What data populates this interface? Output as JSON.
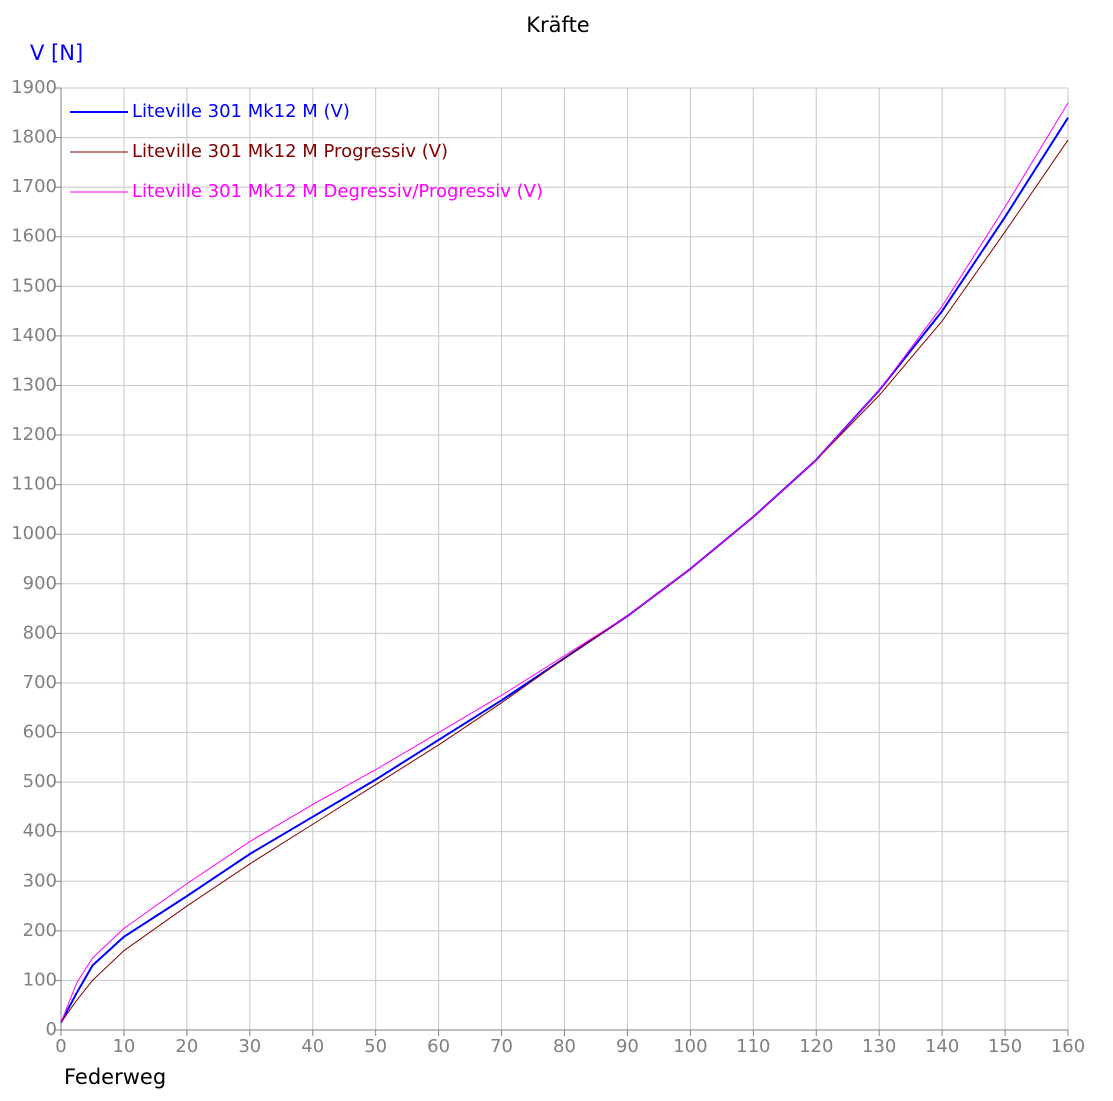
{
  "chart_data": {
    "type": "line",
    "title": "Kräfte",
    "y_label": "V [N]",
    "x_label": "Federweg",
    "x": [
      0,
      2.5,
      5,
      10,
      20,
      30,
      40,
      50,
      60,
      70,
      80,
      90,
      100,
      110,
      120,
      130,
      140,
      150,
      160
    ],
    "series": [
      {
        "name": "Liteville 301 Mk12 M (V)",
        "color": "#0000ff",
        "line_width": 2,
        "values": [
          15,
          75,
          130,
          188,
          270,
          355,
          430,
          505,
          585,
          665,
          750,
          835,
          930,
          1035,
          1150,
          1290,
          1450,
          1640,
          1840
        ]
      },
      {
        "name": "Liteville 301 Mk12 M Progressiv (V)",
        "color": "#800000",
        "line_width": 1,
        "values": [
          15,
          60,
          100,
          160,
          250,
          335,
          415,
          495,
          575,
          660,
          750,
          835,
          930,
          1035,
          1150,
          1280,
          1430,
          1610,
          1795
        ]
      },
      {
        "name": "Liteville 301 Mk12 M Degressiv/Progressiv (V)",
        "color": "#ff00ff",
        "line_width": 1,
        "values": [
          15,
          95,
          145,
          205,
          295,
          380,
          455,
          525,
          600,
          675,
          755,
          835,
          930,
          1035,
          1150,
          1290,
          1460,
          1660,
          1870
        ]
      }
    ],
    "xlim": [
      0,
      160
    ],
    "ylim": [
      0,
      1900
    ],
    "xticks": [
      0,
      10,
      20,
      30,
      40,
      50,
      60,
      70,
      80,
      90,
      100,
      110,
      120,
      130,
      140,
      150,
      160
    ],
    "yticks": [
      0,
      100,
      200,
      300,
      400,
      500,
      600,
      700,
      800,
      900,
      1000,
      1100,
      1200,
      1300,
      1400,
      1500,
      1600,
      1700,
      1800,
      1900
    ],
    "grid": true,
    "legend": "top-left"
  }
}
